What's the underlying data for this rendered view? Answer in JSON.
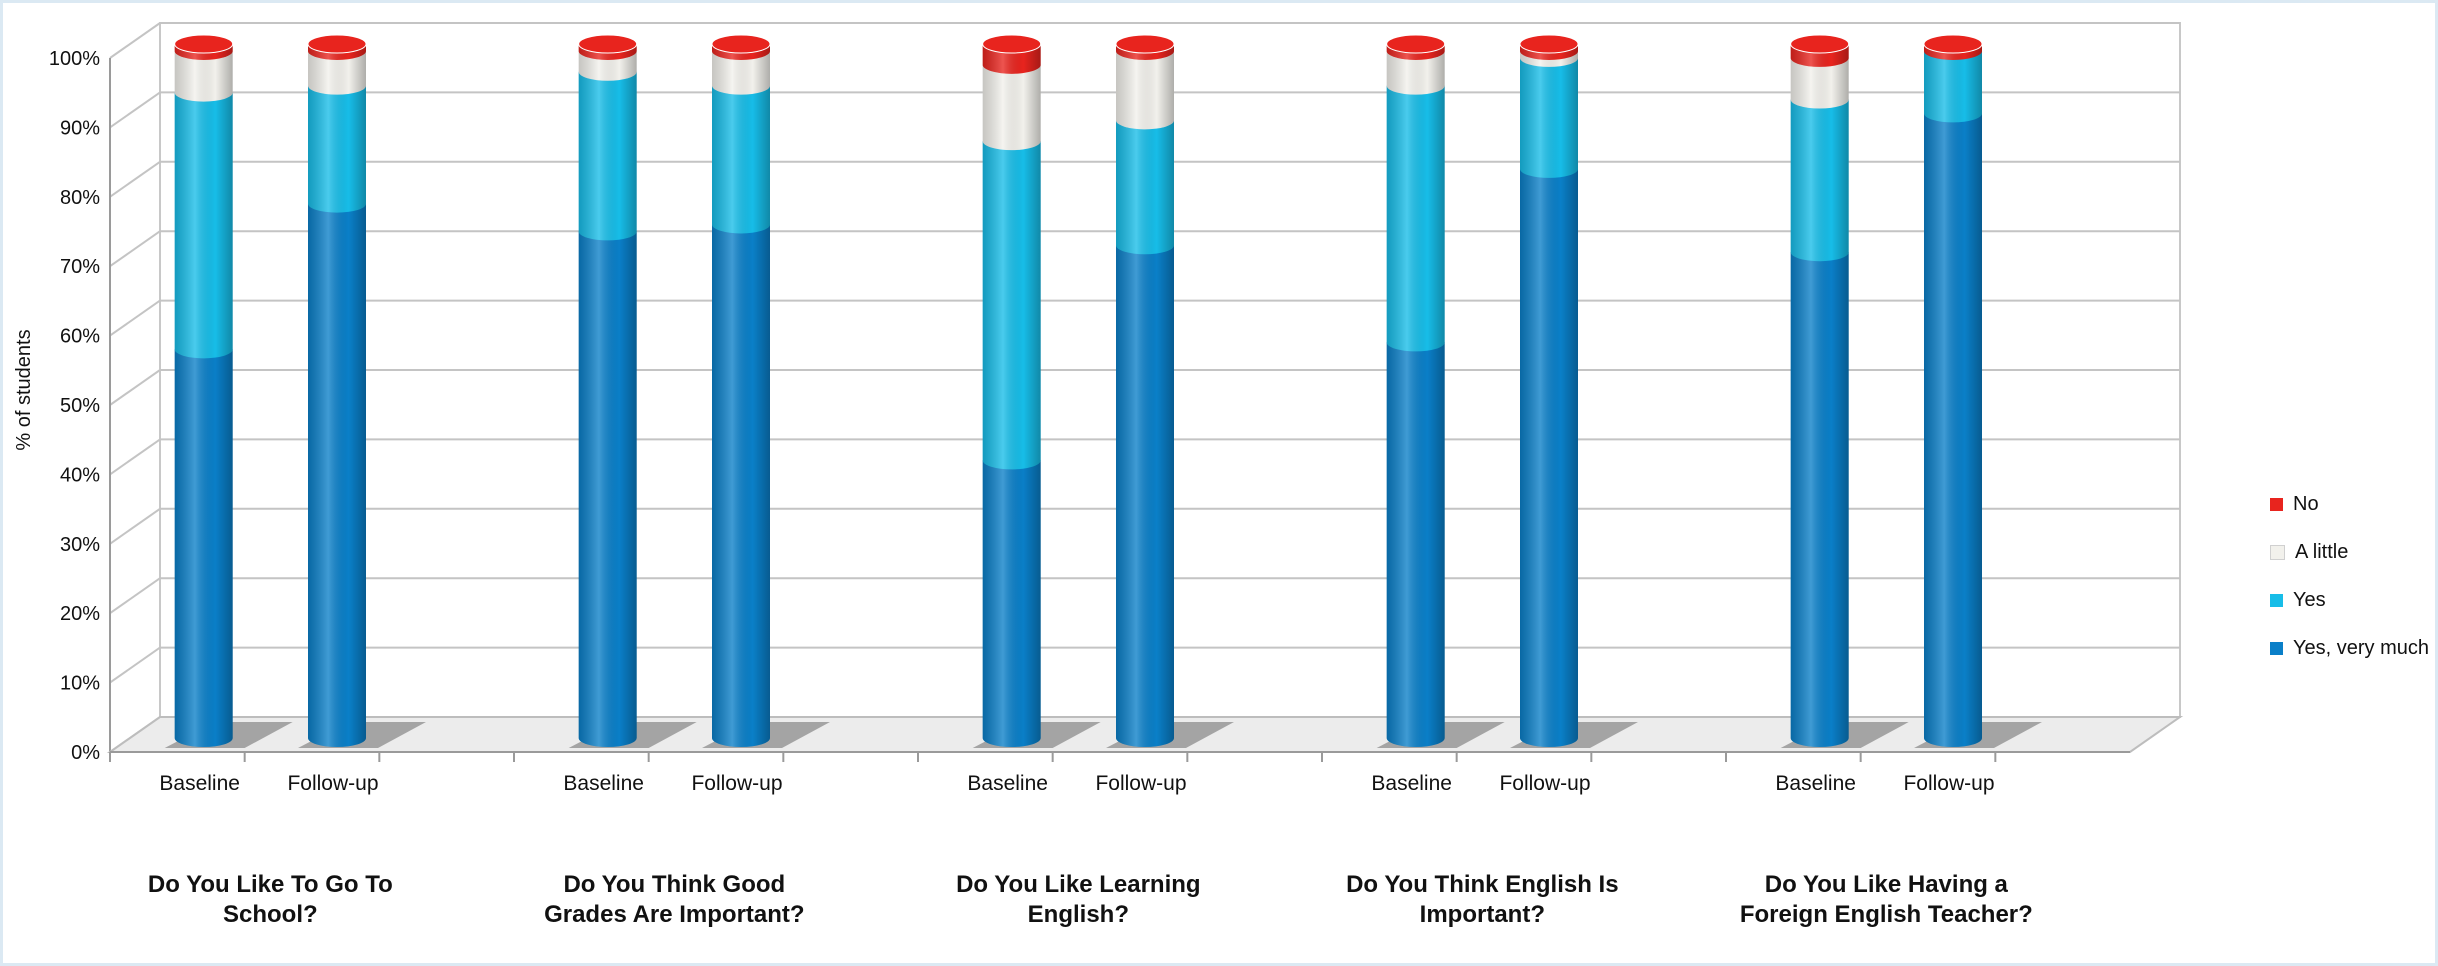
{
  "chart_data": {
    "type": "bar",
    "stacked": true,
    "ylabel": "% of students",
    "ylim": [
      0,
      100
    ],
    "yticks": [
      "0%",
      "10%",
      "20%",
      "30%",
      "40%",
      "50%",
      "60%",
      "70%",
      "80%",
      "90%",
      "100%"
    ],
    "grid": true,
    "legend_position": "right",
    "groups": [
      {
        "title": "Do You Like To Go To School?",
        "bars": [
          "Baseline",
          "Follow-up"
        ]
      },
      {
        "title": "Do You Think Good Grades Are Important?",
        "bars": [
          "Baseline",
          "Follow-up"
        ]
      },
      {
        "title": "Do You Like Learning English?",
        "bars": [
          "Baseline",
          "Follow-up"
        ]
      },
      {
        "title": "Do You Think English Is Important?",
        "bars": [
          "Baseline",
          "Follow-up"
        ]
      },
      {
        "title": "Do You Like Having a Foreign English Teacher?",
        "bars": [
          "Baseline",
          "Follow-up"
        ]
      }
    ],
    "categories": [
      "Baseline",
      "Follow-up",
      "Baseline",
      "Follow-up",
      "Baseline",
      "Follow-up",
      "Baseline",
      "Follow-up",
      "Baseline",
      "Follow-up"
    ],
    "series": [
      {
        "name": "Yes, very much",
        "color": "#0a7fc8",
        "values": [
          56,
          77,
          73,
          74,
          40,
          71,
          57,
          82,
          70,
          90
        ]
      },
      {
        "name": "Yes",
        "color": "#17bde8",
        "values": [
          37,
          17,
          23,
          20,
          46,
          18,
          37,
          16,
          22,
          9
        ]
      },
      {
        "name": "A little",
        "color": "#f2f1ec",
        "values": [
          6,
          5,
          3,
          5,
          11,
          10,
          5,
          1,
          6,
          0
        ]
      },
      {
        "name": "No",
        "color": "#e8241e",
        "values": [
          1,
          1,
          1,
          1,
          3,
          1,
          1,
          1,
          2,
          1
        ]
      }
    ],
    "legend_order": [
      "No",
      "A little",
      "Yes",
      "Yes, very much"
    ]
  }
}
